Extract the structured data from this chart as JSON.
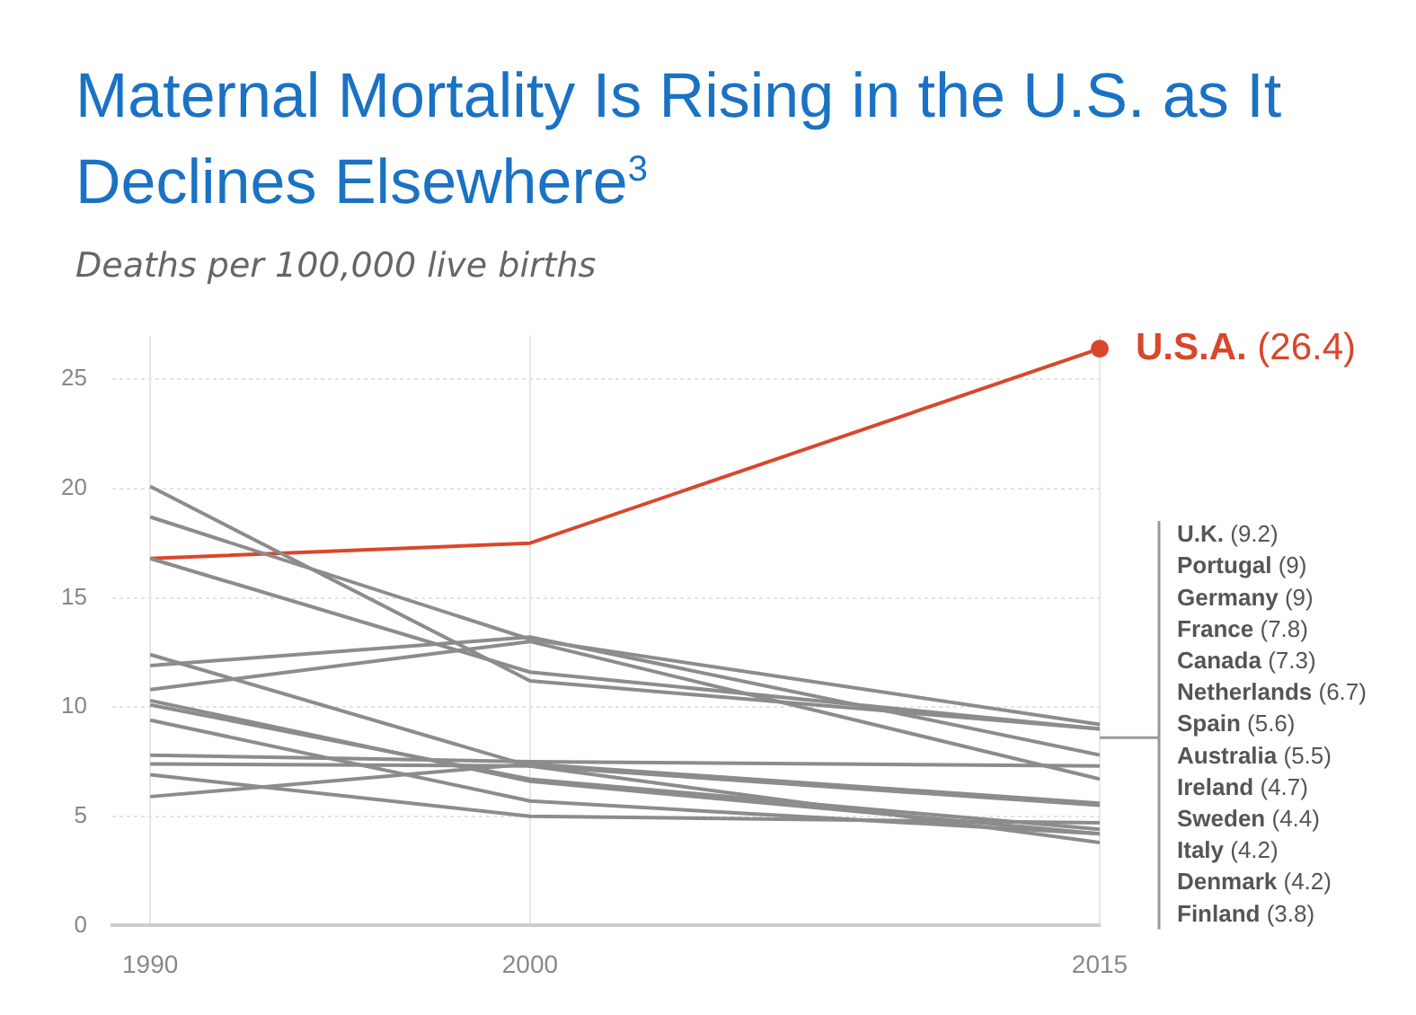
{
  "chart_data": {
    "type": "line",
    "title": "Maternal Mortality Is Rising in the U.S. as It Declines Elsewhere$^{3}$",
    "subtitle": "Deaths per 100,000 live births",
    "x": [
      1990,
      2000,
      2015
    ],
    "xlim": [
      1989,
      2015
    ],
    "xticks": [
      1990,
      2000,
      2015
    ],
    "ylim": [
      0,
      27
    ],
    "yticks": [
      0,
      5,
      10,
      15,
      20,
      25
    ],
    "grid": true,
    "series": [
      {
        "name": "U.S.A. (26.4)",
        "color": "#d9472b",
        "values": [
          16.8,
          17.5,
          26.4
        ]
      },
      {
        "name": "U.K. (9.2)",
        "color": "#8c8c8c",
        "values": [
          18.7,
          13.1,
          9.2
        ]
      },
      {
        "name": "Portugal (9)",
        "color": "#8c8c8c",
        "values": [
          16.8,
          11.6,
          9
        ]
      },
      {
        "name": "Germany (9)",
        "color": "#8c8c8c",
        "values": [
          20.1,
          11.2,
          9
        ]
      },
      {
        "name": "France (7.8)",
        "color": "#8c8c8c",
        "values": [
          11.9,
          13.2,
          7.8
        ]
      },
      {
        "name": "Canada (7.3)",
        "color": "#8c8c8c",
        "values": [
          7.8,
          7.5,
          7.3
        ]
      },
      {
        "name": "Netherlands (6.7)",
        "color": "#8c8c8c",
        "values": [
          10.8,
          13,
          6.7
        ]
      },
      {
        "name": "Spain (5.6)",
        "color": "#8c8c8c",
        "values": [
          5.9,
          7.4,
          5.6
        ]
      },
      {
        "name": "Australia (5.5)",
        "color": "#8c8c8c",
        "values": [
          7.4,
          7.3,
          5.5
        ]
      },
      {
        "name": "Ireland (4.7)",
        "color": "#8c8c8c",
        "values": [
          6.9,
          5,
          4.7
        ]
      },
      {
        "name": "Sweden (4.4)",
        "color": "#8c8c8c",
        "values": [
          10.1,
          6.7,
          4.4
        ]
      },
      {
        "name": "Italy (4.2)",
        "color": "#8c8c8c",
        "values": [
          10.3,
          6.6,
          4.2
        ]
      },
      {
        "name": "Denmark (4.2)",
        "color": "#8c8c8c",
        "values": [
          9.4,
          5.7,
          4.2
        ]
      },
      {
        "name": "Finland (3.8)",
        "color": "#8c8c8c",
        "values": [
          12.4,
          7.3,
          3.8
        ]
      }
    ]
  }
}
